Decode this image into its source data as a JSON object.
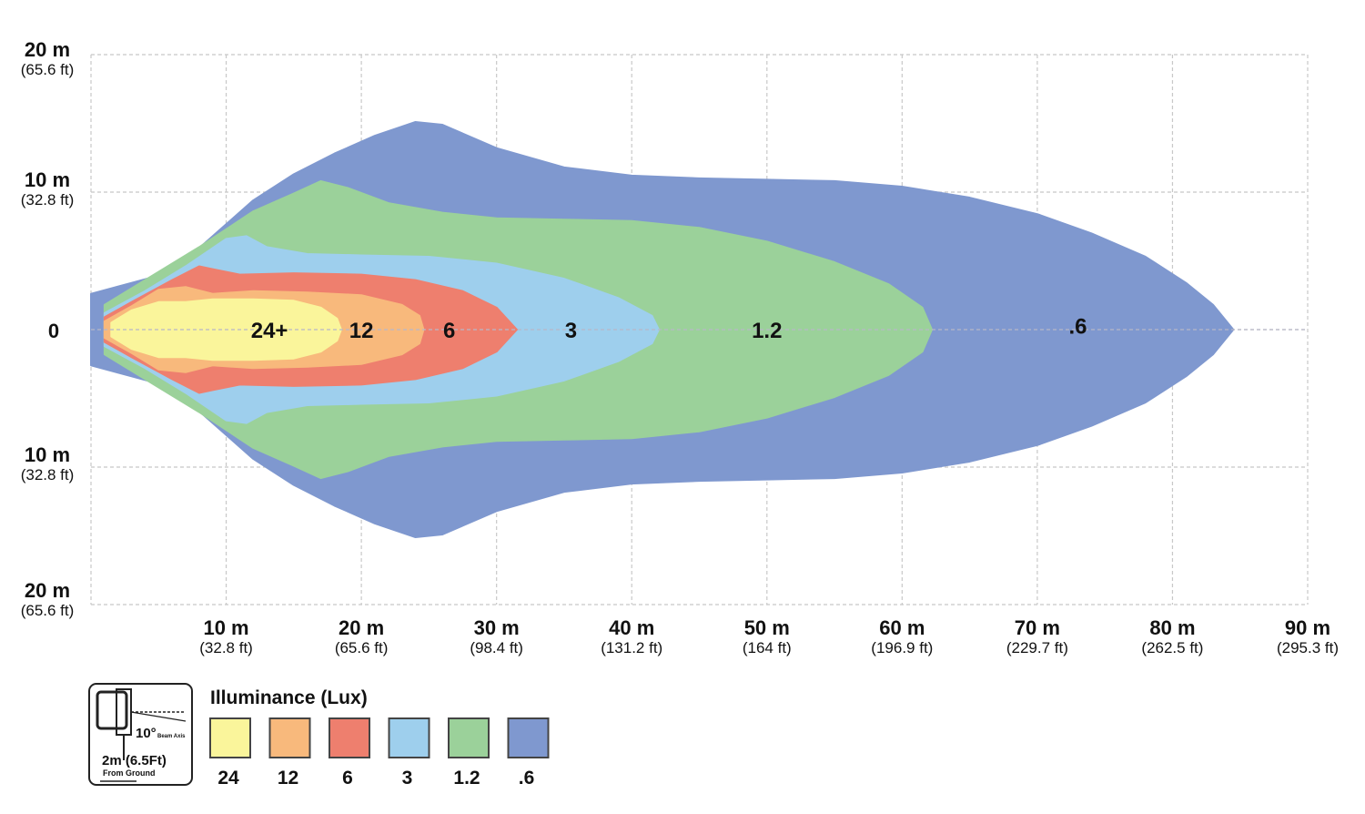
{
  "chart_data": {
    "type": "heatmap",
    "title": "",
    "legend": {
      "title": "Illuminance (Lux)",
      "entries": [
        {
          "label": "24",
          "color": "#faf59b"
        },
        {
          "label": "12",
          "color": "#f8b97c"
        },
        {
          "label": "6",
          "color": "#ee7f6e"
        },
        {
          "label": "3",
          "color": "#9ecfed"
        },
        {
          "label": "1.2",
          "color": "#9bd19a"
        },
        {
          "label": ".6",
          "color": "#7f98cf"
        }
      ]
    },
    "x_axis": {
      "range": [
        0,
        90
      ],
      "ticks": [
        {
          "value": 10,
          "label": "10 m",
          "sub": "(32.8 ft)"
        },
        {
          "value": 20,
          "label": "20 m",
          "sub": "(65.6 ft)"
        },
        {
          "value": 30,
          "label": "30 m",
          "sub": "(98.4 ft)"
        },
        {
          "value": 40,
          "label": "40 m",
          "sub": "(131.2 ft)"
        },
        {
          "value": 50,
          "label": "50 m",
          "sub": "(164 ft)"
        },
        {
          "value": 60,
          "label": "60 m",
          "sub": "(196.9 ft)"
        },
        {
          "value": 70,
          "label": "70 m",
          "sub": "(229.7 ft)"
        },
        {
          "value": 80,
          "label": "80 m",
          "sub": "(262.5 ft)"
        },
        {
          "value": 90,
          "label": "90 m",
          "sub": "(295.3 ft)"
        }
      ]
    },
    "y_axis": {
      "range": [
        -20,
        20
      ],
      "ticks": [
        {
          "value": 20,
          "label": "20 m",
          "sub": "(65.6 ft)"
        },
        {
          "value": 10,
          "label": "10 m",
          "sub": "(32.8 ft)"
        },
        {
          "value": 0,
          "label": "0",
          "sub": ""
        },
        {
          "value": -10,
          "label": "10 m",
          "sub": "(32.8 ft)"
        },
        {
          "value": -20,
          "label": "20 m",
          "sub": "(65.6 ft)"
        }
      ]
    },
    "zones": [
      {
        "lux": ".6",
        "label": ".6",
        "color": "#7f98cf",
        "label_x": 73,
        "label_y": 0.3,
        "outline": [
          [
            0,
            2.6
          ],
          [
            3,
            3.4
          ],
          [
            6,
            4.2
          ],
          [
            9,
            6.8
          ],
          [
            12,
            9.4
          ],
          [
            15,
            11.3
          ],
          [
            18,
            12.8
          ],
          [
            21,
            14.1
          ],
          [
            24,
            15.1
          ],
          [
            26,
            14.9
          ],
          [
            30,
            13.2
          ],
          [
            35,
            11.8
          ],
          [
            40,
            11.2
          ],
          [
            45,
            11
          ],
          [
            50,
            10.9
          ],
          [
            55,
            10.8
          ],
          [
            60,
            10.4
          ],
          [
            65,
            9.6
          ],
          [
            70,
            8.4
          ],
          [
            74,
            7
          ],
          [
            78,
            5.3
          ],
          [
            81,
            3.4
          ],
          [
            83,
            1.8
          ],
          [
            84.5,
            0
          ]
        ]
      },
      {
        "lux": "1.2",
        "label": "1.2",
        "color": "#9bd19a",
        "label_x": 50,
        "label_y": 0,
        "outline": [
          [
            1,
            1.8
          ],
          [
            4,
            3.6
          ],
          [
            8,
            6
          ],
          [
            12,
            8.6
          ],
          [
            15,
            9.9
          ],
          [
            17,
            10.8
          ],
          [
            19,
            10.3
          ],
          [
            22,
            9.2
          ],
          [
            26,
            8.5
          ],
          [
            30,
            8.1
          ],
          [
            35,
            8
          ],
          [
            40,
            7.9
          ],
          [
            45,
            7.4
          ],
          [
            50,
            6.4
          ],
          [
            55,
            4.9
          ],
          [
            59,
            3.3
          ],
          [
            61.5,
            1.6
          ],
          [
            62.2,
            0
          ]
        ]
      },
      {
        "lux": "3",
        "label": "3",
        "color": "#9ecfed",
        "label_x": 35.5,
        "label_y": 0,
        "outline": [
          [
            1,
            1.2
          ],
          [
            4,
            2.8
          ],
          [
            7,
            4.6
          ],
          [
            10,
            6.6
          ],
          [
            11.5,
            6.8
          ],
          [
            13,
            6
          ],
          [
            16,
            5.5
          ],
          [
            20,
            5.4
          ],
          [
            25,
            5.3
          ],
          [
            30,
            4.8
          ],
          [
            35,
            3.7
          ],
          [
            39,
            2.3
          ],
          [
            41.5,
            1
          ],
          [
            42,
            0
          ]
        ]
      },
      {
        "lux": "6",
        "label": "6",
        "color": "#ee7f6e",
        "label_x": 26.5,
        "label_y": 0,
        "outline": [
          [
            1,
            0.9
          ],
          [
            3,
            2
          ],
          [
            6,
            3.6
          ],
          [
            8,
            4.6
          ],
          [
            9,
            4.4
          ],
          [
            11,
            4
          ],
          [
            15,
            4.1
          ],
          [
            20,
            4
          ],
          [
            24,
            3.6
          ],
          [
            27.5,
            2.8
          ],
          [
            30,
            1.6
          ],
          [
            31.5,
            0
          ]
        ]
      },
      {
        "lux": "12",
        "label": "12",
        "color": "#f8b97c",
        "label_x": 20,
        "label_y": 0,
        "outline": [
          [
            1,
            0.6
          ],
          [
            3,
            1.7
          ],
          [
            5,
            2.9
          ],
          [
            7,
            3.1
          ],
          [
            9,
            2.6
          ],
          [
            12,
            2.8
          ],
          [
            16,
            2.7
          ],
          [
            20,
            2.5
          ],
          [
            23,
            1.8
          ],
          [
            24.3,
            1
          ],
          [
            24.6,
            0
          ]
        ]
      },
      {
        "lux": "24",
        "label": "24+",
        "color": "#faf59b",
        "label_x": 13.2,
        "label_y": 0,
        "outline": [
          [
            1.5,
            0.5
          ],
          [
            3,
            1.4
          ],
          [
            5,
            2
          ],
          [
            7,
            2
          ],
          [
            9,
            2.2
          ],
          [
            12,
            2.2
          ],
          [
            15,
            2.1
          ],
          [
            17,
            1.6
          ],
          [
            18.2,
            0.8
          ],
          [
            18.5,
            0
          ]
        ]
      }
    ]
  },
  "inset": {
    "angle": "10°",
    "height": "2m (6.5Ft)",
    "height_note": "From Ground",
    "beam_note": "Beam Axis"
  }
}
